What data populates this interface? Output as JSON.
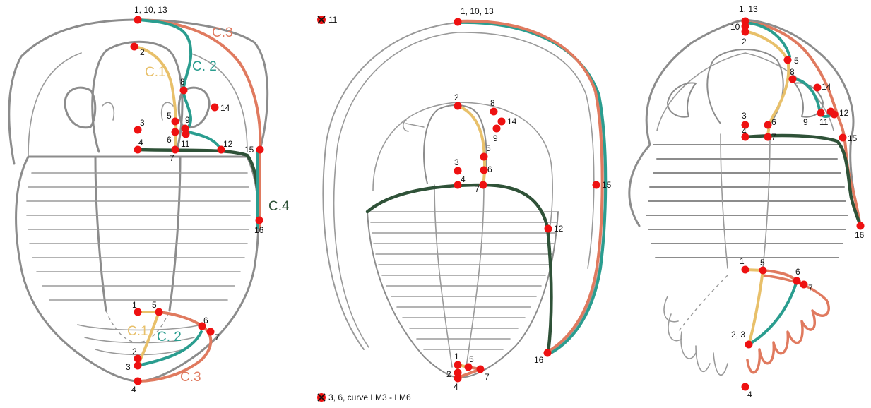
{
  "colors": {
    "curve_1": "#e8c06a",
    "curve_2": "#2a9d8f",
    "curve_3": "#e07a5f",
    "curve_4": "#2f5238",
    "landmark": "#ee1111",
    "outline": "#8c8c8c"
  },
  "curve_labels": {
    "c1": "C.1",
    "c2": "C. 2",
    "c3": "C.3",
    "c4": "C.4"
  },
  "left": {
    "cephalon": {
      "lm_1_10_13": "1, 10, 13",
      "lm_2": "2",
      "lm_3": "3",
      "lm_4": "4",
      "lm_5": "5",
      "lm_6": "6",
      "lm_7": "7",
      "lm_8": "8",
      "lm_9": "9",
      "lm_11": "11",
      "lm_12": "12",
      "lm_14": "14",
      "lm_15": "15",
      "lm_16": "16"
    },
    "pygidium": {
      "lm_1": "1",
      "lm_2": "2",
      "lm_3": "3",
      "lm_4": "4",
      "lm_5": "5",
      "lm_6": "6",
      "lm_7": "7"
    }
  },
  "middle": {
    "excluded_top": "11",
    "excluded_bottom": "3, 6, curve LM3 - LM6",
    "cephalon": {
      "lm_1_10_13": "1, 10, 13",
      "lm_2": "2",
      "lm_3": "3",
      "lm_4": "4",
      "lm_5": "5",
      "lm_6": "6",
      "lm_7": "7",
      "lm_8": "8",
      "lm_9": "9",
      "lm_12": "12",
      "lm_14": "14",
      "lm_15": "15",
      "lm_16": "16"
    },
    "pygidium": {
      "lm_1": "1",
      "lm_2": "2",
      "lm_4": "4",
      "lm_5": "5",
      "lm_7": "7"
    }
  },
  "right": {
    "cephalon": {
      "lm_1_13": "1, 13",
      "lm_10": "10",
      "lm_2": "2",
      "lm_3": "3",
      "lm_4": "4",
      "lm_5": "5",
      "lm_6": "6",
      "lm_7": "7",
      "lm_8": "8",
      "lm_9": "9",
      "lm_11": "11",
      "lm_12": "12",
      "lm_14": "14",
      "lm_15": "15",
      "lm_16": "16"
    },
    "pygidium": {
      "lm_1": "1",
      "lm_2_3": "2, 3",
      "lm_4": "4",
      "lm_5": "5",
      "lm_6": "6",
      "lm_7": "7"
    }
  }
}
